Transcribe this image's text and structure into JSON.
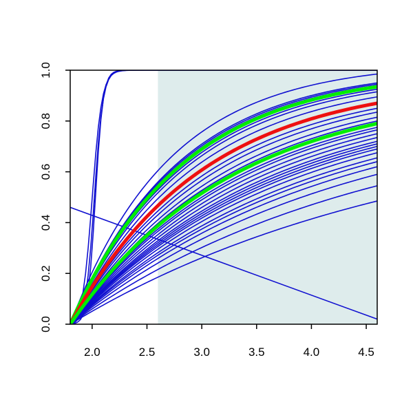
{
  "chart_data": {
    "type": "line",
    "title": "",
    "xlabel": "",
    "ylabel": "",
    "xlim": [
      1.8,
      4.6
    ],
    "ylim": [
      0.0,
      1.0
    ],
    "x_ticks": [
      2.0,
      2.5,
      3.0,
      3.5,
      4.0,
      4.5
    ],
    "x_tick_labels": [
      "2.0",
      "2.5",
      "3.0",
      "3.5",
      "4.0",
      "4.5"
    ],
    "y_ticks": [
      0.0,
      0.2,
      0.4,
      0.6,
      0.8,
      1.0
    ],
    "y_tick_labels": [
      "0.0",
      "0.2",
      "0.4",
      "0.6",
      "0.8",
      "1.0"
    ],
    "grid": false,
    "legend": "none",
    "shaded_region": {
      "x": [
        2.6,
        4.6
      ],
      "color": "#deecec"
    },
    "colors": {
      "blue": "#1010d0",
      "green": "#00ee00",
      "red": "#ee1010",
      "axis": "#000000"
    },
    "series": [
      {
        "kind": "steep",
        "end": 1.0,
        "center": 2.03,
        "width": 0.035,
        "color": "#1010d0",
        "emphasis": "normal"
      },
      {
        "kind": "steep",
        "end": 1.0,
        "center": 2.02,
        "width": 0.04,
        "color": "#1010d0",
        "emphasis": "normal"
      },
      {
        "kind": "steep",
        "end": 1.0,
        "center": 2.0,
        "width": 0.045,
        "color": "#1010d0",
        "emphasis": "normal"
      },
      {
        "kind": "linear",
        "x": [
          1.8,
          4.6
        ],
        "y": [
          0.46,
          0.02
        ],
        "color": "#1010d0",
        "emphasis": "normal"
      },
      {
        "kind": "curve",
        "end": 0.985,
        "color": "#1010d0",
        "emphasis": "normal"
      },
      {
        "kind": "curve",
        "end": 0.95,
        "color": "#1010d0",
        "emphasis": "normal"
      },
      {
        "kind": "curve",
        "end": 0.945,
        "color": "#1010d0",
        "emphasis": "normal"
      },
      {
        "kind": "curve",
        "end": 0.94,
        "color": "#1010d0",
        "emphasis": "normal"
      },
      {
        "kind": "curve",
        "end": 0.935,
        "color": "#00ee00",
        "emphasis": "thick"
      },
      {
        "kind": "curve",
        "end": 0.925,
        "color": "#1010d0",
        "emphasis": "normal"
      },
      {
        "kind": "curve",
        "end": 0.915,
        "color": "#1010d0",
        "emphasis": "normal"
      },
      {
        "kind": "curve",
        "end": 0.895,
        "color": "#1010d0",
        "emphasis": "normal"
      },
      {
        "kind": "curve",
        "end": 0.87,
        "color": "#ee1010",
        "emphasis": "thick"
      },
      {
        "kind": "curve",
        "end": 0.85,
        "color": "#1010d0",
        "emphasis": "normal"
      },
      {
        "kind": "curve",
        "end": 0.835,
        "color": "#1010d0",
        "emphasis": "normal"
      },
      {
        "kind": "curve",
        "end": 0.815,
        "color": "#1010d0",
        "emphasis": "normal"
      },
      {
        "kind": "curve",
        "end": 0.8,
        "color": "#1010d0",
        "emphasis": "normal"
      },
      {
        "kind": "curve",
        "end": 0.79,
        "color": "#00ee00",
        "emphasis": "thick"
      },
      {
        "kind": "curve",
        "end": 0.775,
        "color": "#1010d0",
        "emphasis": "normal"
      },
      {
        "kind": "curve",
        "end": 0.765,
        "color": "#1010d0",
        "emphasis": "normal"
      },
      {
        "kind": "curve",
        "end": 0.75,
        "color": "#1010d0",
        "emphasis": "normal"
      },
      {
        "kind": "curve",
        "end": 0.735,
        "color": "#1010d0",
        "emphasis": "normal"
      },
      {
        "kind": "curve",
        "end": 0.72,
        "color": "#1010d0",
        "emphasis": "normal"
      },
      {
        "kind": "curve",
        "end": 0.71,
        "color": "#1010d0",
        "emphasis": "normal"
      },
      {
        "kind": "curve",
        "end": 0.7,
        "color": "#1010d0",
        "emphasis": "normal"
      },
      {
        "kind": "curve",
        "end": 0.69,
        "color": "#1010d0",
        "emphasis": "normal"
      },
      {
        "kind": "curve",
        "end": 0.675,
        "color": "#1010d0",
        "emphasis": "normal"
      },
      {
        "kind": "curve",
        "end": 0.655,
        "color": "#1010d0",
        "emphasis": "normal"
      },
      {
        "kind": "curve",
        "end": 0.64,
        "color": "#1010d0",
        "emphasis": "normal"
      },
      {
        "kind": "curve",
        "end": 0.62,
        "color": "#1010d0",
        "emphasis": "normal"
      },
      {
        "kind": "curve",
        "end": 0.59,
        "color": "#1010d0",
        "emphasis": "normal"
      },
      {
        "kind": "curve",
        "end": 0.545,
        "color": "#1010d0",
        "emphasis": "normal"
      },
      {
        "kind": "curve",
        "end": 0.485,
        "color": "#1010d0",
        "emphasis": "normal"
      }
    ]
  }
}
